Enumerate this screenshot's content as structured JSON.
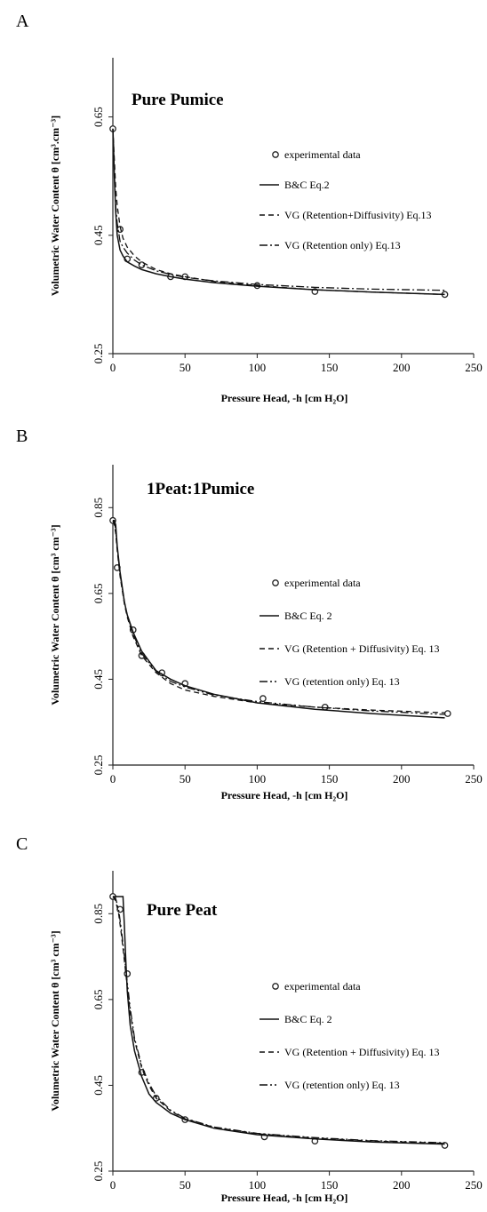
{
  "chart_data": [
    {
      "panel": "A",
      "type": "line",
      "title": "Pure Pumice",
      "xlabel": "Pressure Head, -h [cm H₂O]",
      "ylabel": "Volumetric Water Content θ [cm³.cm⁻³]",
      "xlim": [
        0,
        250
      ],
      "ylim": [
        0.25,
        0.75
      ],
      "xticks": [
        0,
        50,
        100,
        150,
        200,
        250
      ],
      "yticks": [
        0.25,
        0.45,
        0.65
      ],
      "ytick_labels": [
        "0.25",
        "0.45",
        "0.65"
      ],
      "grid": false,
      "legend_position": "right",
      "series": [
        {
          "name": "experimental data",
          "kind": "points",
          "x": [
            0,
            5,
            10,
            20,
            40,
            50,
            100,
            140,
            230
          ],
          "y": [
            0.63,
            0.46,
            0.41,
            0.4,
            0.38,
            0.38,
            0.365,
            0.355,
            0.35
          ]
        },
        {
          "name": "B&C Eq.2",
          "kind": "line",
          "dash": "solid",
          "x": [
            0,
            0.5,
            1,
            2,
            3,
            5,
            7,
            10,
            15,
            20,
            30,
            40,
            50,
            70,
            100,
            140,
            180,
            230
          ],
          "y": [
            0.63,
            0.6,
            0.55,
            0.49,
            0.45,
            0.425,
            0.415,
            0.405,
            0.398,
            0.392,
            0.385,
            0.38,
            0.376,
            0.37,
            0.364,
            0.358,
            0.354,
            0.35
          ]
        },
        {
          "name": "VG (Retention+Diffusivity) Eq.13",
          "kind": "line",
          "dash": "dashed",
          "x": [
            0,
            1,
            2,
            3,
            5,
            7,
            10,
            15,
            20,
            30,
            40,
            50,
            70,
            100,
            140,
            180,
            230
          ],
          "y": [
            0.63,
            0.58,
            0.53,
            0.5,
            0.465,
            0.445,
            0.43,
            0.415,
            0.405,
            0.392,
            0.385,
            0.38,
            0.372,
            0.365,
            0.358,
            0.354,
            0.35
          ]
        },
        {
          "name": "VG (Retention only) Eq.13",
          "kind": "line",
          "dash": "dashdot",
          "x": [
            0,
            1,
            2,
            3,
            5,
            7,
            10,
            15,
            20,
            30,
            40,
            50,
            70,
            100,
            140,
            180,
            230
          ],
          "y": [
            0.63,
            0.56,
            0.5,
            0.47,
            0.44,
            0.43,
            0.42,
            0.408,
            0.4,
            0.39,
            0.384,
            0.379,
            0.373,
            0.367,
            0.362,
            0.359,
            0.357
          ]
        }
      ]
    },
    {
      "panel": "B",
      "type": "line",
      "title": "1Peat:1Pumice",
      "xlabel": "Pressure Head, -h [cm H₂O]",
      "ylabel": "Volumetric Water Content θ [cm³ cm⁻³]",
      "xlim": [
        0,
        250
      ],
      "ylim": [
        0.25,
        0.95
      ],
      "xticks": [
        0,
        50,
        100,
        150,
        200,
        250
      ],
      "yticks": [
        0.25,
        0.45,
        0.65,
        0.85
      ],
      "ytick_labels": [
        "0.25",
        "0.45",
        "0.65",
        "0.85"
      ],
      "grid": false,
      "legend_position": "right",
      "series": [
        {
          "name": "experimental data",
          "kind": "points",
          "x": [
            0,
            3,
            14,
            20,
            34,
            50,
            104,
            147,
            232
          ],
          "y": [
            0.82,
            0.71,
            0.565,
            0.505,
            0.465,
            0.44,
            0.405,
            0.385,
            0.37
          ]
        },
        {
          "name": "B&C Eq. 2",
          "kind": "line",
          "dash": "solid",
          "x": [
            0,
            1,
            2,
            3,
            5,
            8,
            10,
            14,
            20,
            30,
            40,
            50,
            70,
            100,
            140,
            180,
            230
          ],
          "y": [
            0.82,
            0.82,
            0.81,
            0.76,
            0.7,
            0.63,
            0.6,
            0.56,
            0.515,
            0.47,
            0.45,
            0.435,
            0.415,
            0.395,
            0.38,
            0.37,
            0.36
          ]
        },
        {
          "name": "VG (Retention + Diffusivity) Eq. 13",
          "kind": "line",
          "dash": "dashed",
          "x": [
            0,
            1,
            2,
            3,
            5,
            8,
            10,
            14,
            20,
            30,
            40,
            50,
            70,
            100,
            140,
            180,
            230
          ],
          "y": [
            0.82,
            0.81,
            0.79,
            0.75,
            0.69,
            0.625,
            0.595,
            0.55,
            0.505,
            0.465,
            0.44,
            0.425,
            0.41,
            0.395,
            0.385,
            0.378,
            0.372
          ]
        },
        {
          "name": "VG (retention only) Eq. 13",
          "kind": "line",
          "dash": "dashdotdot",
          "x": [
            0,
            1,
            2,
            3,
            5,
            8,
            10,
            14,
            20,
            30,
            40,
            50,
            70,
            100,
            140,
            180,
            230
          ],
          "y": [
            0.82,
            0.815,
            0.8,
            0.755,
            0.695,
            0.63,
            0.6,
            0.555,
            0.51,
            0.468,
            0.445,
            0.432,
            0.413,
            0.398,
            0.385,
            0.376,
            0.368
          ]
        }
      ]
    },
    {
      "panel": "C",
      "type": "line",
      "title": "Pure Peat",
      "xlabel": "Pressure Head, -h [cm H₂O]",
      "ylabel": "Volumetric Water Content θ [cm³ cm⁻³]",
      "xlim": [
        0,
        250
      ],
      "ylim": [
        0.25,
        0.95
      ],
      "xticks": [
        0,
        50,
        100,
        150,
        200,
        250
      ],
      "yticks": [
        0.25,
        0.45,
        0.65,
        0.85
      ],
      "ytick_labels": [
        "0.25",
        "0.45",
        "0.65",
        "0.85"
      ],
      "grid": false,
      "legend_position": "right",
      "series": [
        {
          "name": "experimental data",
          "kind": "points",
          "x": [
            0,
            5,
            10,
            20,
            30,
            50,
            105,
            140,
            230
          ],
          "y": [
            0.89,
            0.86,
            0.71,
            0.48,
            0.42,
            0.37,
            0.33,
            0.32,
            0.31
          ]
        },
        {
          "name": "B&C Eq. 2",
          "kind": "line",
          "dash": "solid",
          "x": [
            0,
            5,
            7,
            8,
            9,
            10,
            12,
            15,
            20,
            25,
            30,
            40,
            50,
            70,
            100,
            140,
            180,
            230
          ],
          "y": [
            0.89,
            0.89,
            0.89,
            0.82,
            0.74,
            0.67,
            0.59,
            0.53,
            0.47,
            0.43,
            0.41,
            0.385,
            0.37,
            0.35,
            0.335,
            0.325,
            0.318,
            0.313
          ]
        },
        {
          "name": "VG (Retention + Diffusivity) Eq. 13",
          "kind": "line",
          "dash": "dashed",
          "x": [
            0,
            2,
            4,
            6,
            8,
            10,
            12,
            15,
            20,
            25,
            30,
            40,
            50,
            70,
            100,
            140,
            180,
            230
          ],
          "y": [
            0.89,
            0.88,
            0.85,
            0.8,
            0.74,
            0.68,
            0.62,
            0.555,
            0.49,
            0.45,
            0.42,
            0.39,
            0.372,
            0.352,
            0.337,
            0.327,
            0.32,
            0.315
          ]
        },
        {
          "name": "VG (retention only) Eq. 13",
          "kind": "line",
          "dash": "dashdotdot",
          "x": [
            0,
            2,
            4,
            6,
            8,
            10,
            12,
            15,
            20,
            25,
            30,
            40,
            50,
            70,
            100,
            140,
            180,
            230
          ],
          "y": [
            0.89,
            0.885,
            0.86,
            0.81,
            0.75,
            0.69,
            0.63,
            0.56,
            0.495,
            0.455,
            0.425,
            0.392,
            0.373,
            0.353,
            0.338,
            0.328,
            0.321,
            0.316
          ]
        }
      ]
    }
  ]
}
